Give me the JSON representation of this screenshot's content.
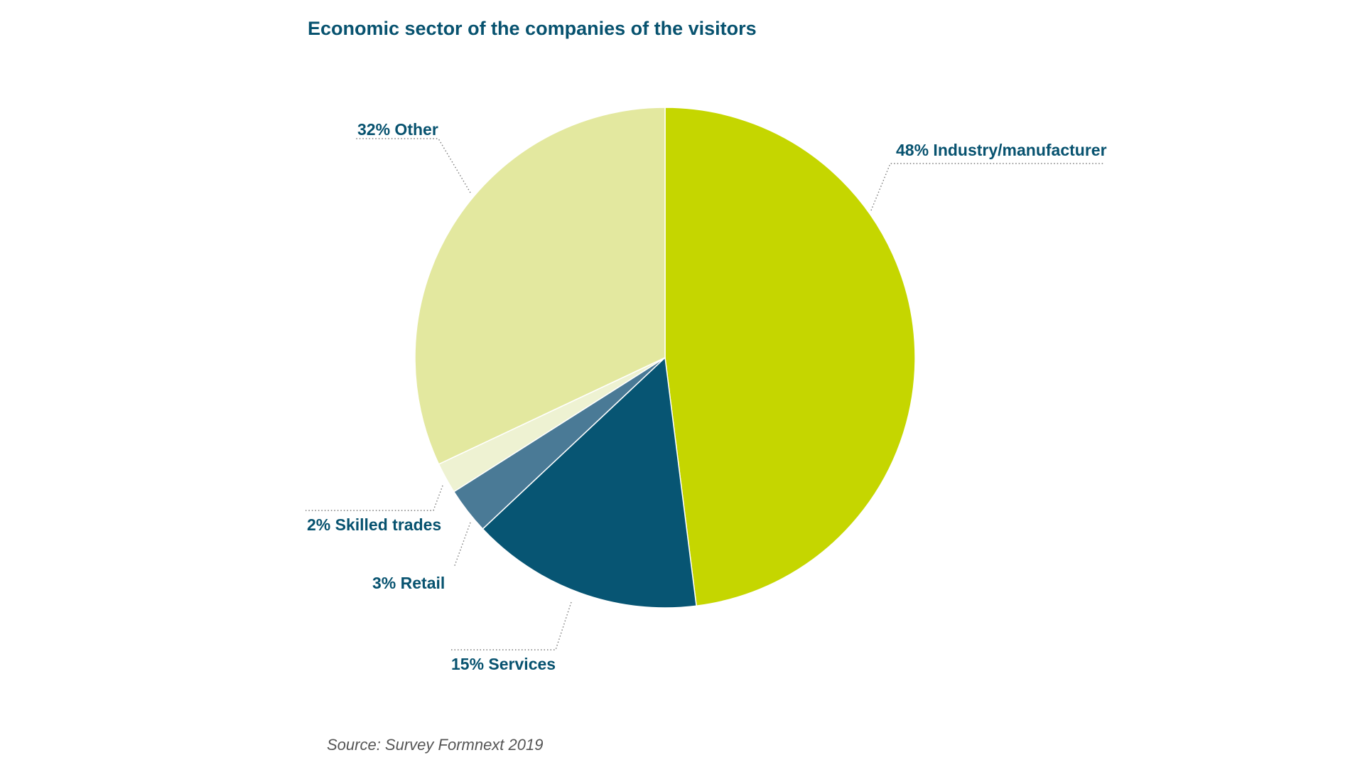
{
  "chart_data": {
    "type": "pie",
    "title": "Economic sector of the companies of the visitors",
    "slices": [
      {
        "name": "Industry/manufacturer",
        "value": 48,
        "label": "48% Industry/manufacturer",
        "color": "#c5d600"
      },
      {
        "name": "Services",
        "value": 15,
        "label": "15% Services",
        "color": "#075573"
      },
      {
        "name": "Retail",
        "value": 3,
        "label": "3% Retail",
        "color": "#4a7a96"
      },
      {
        "name": "Skilled trades",
        "value": 2,
        "label": "2% Skilled trades",
        "color": "#eef2d2"
      },
      {
        "name": "Other",
        "value": 32,
        "label": "32% Other",
        "color": "#e3e89f"
      }
    ],
    "start_angle": "12 o'clock",
    "direction": "clockwise",
    "legend": "none"
  },
  "source": "Source: Survey Formnext 2019"
}
